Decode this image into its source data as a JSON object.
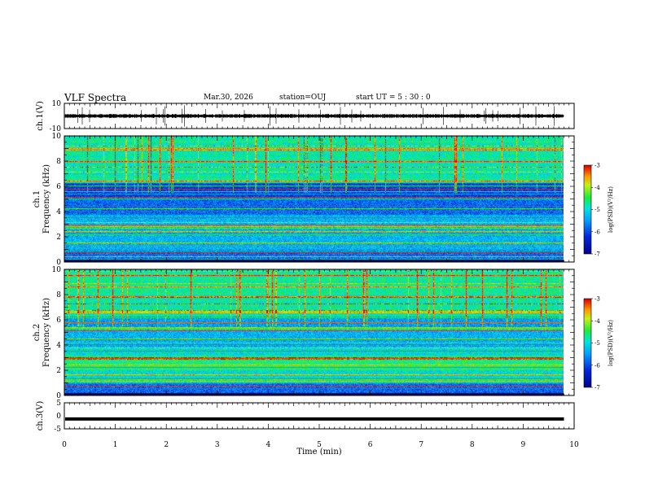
{
  "header": {
    "title": "VLF Spectra",
    "date": "Mar.30, 2026",
    "station": "station=OUJ",
    "start_ut": "start  UT =   5 : 30 : 0"
  },
  "chart_data": [
    {
      "id": "waveform-ch1",
      "type": "line",
      "ylabel": "ch.1(V)",
      "ylim": [
        -10,
        10
      ],
      "yticks": [
        "10",
        "-10"
      ],
      "baseline": 0
    },
    {
      "id": "spectrogram-ch1",
      "type": "heatmap",
      "ylabel_top": "ch.1",
      "ylabel_bottom": "Frequency  (kHz)",
      "ylim": [
        0,
        10
      ],
      "yticks": [
        "0",
        "2",
        "4",
        "6",
        "8",
        "10"
      ]
    },
    {
      "id": "spectrogram-ch2",
      "type": "heatmap",
      "ylabel_top": "ch.2",
      "ylabel_bottom": "Frequency  (kHz)",
      "ylim": [
        0,
        10
      ],
      "yticks": [
        "0",
        "2",
        "4",
        "6",
        "8",
        "10"
      ]
    },
    {
      "id": "waveform-ch3",
      "type": "line",
      "ylabel": "ch.3(V)",
      "ylim": [
        -5,
        5
      ],
      "yticks": [
        "5",
        "0",
        "-5"
      ],
      "baseline": -1.2
    }
  ],
  "x_axis": {
    "xlabel": "Time  (min)",
    "xlim": [
      0,
      10
    ],
    "xticks": [
      "0",
      "1",
      "2",
      "3",
      "4",
      "5",
      "6",
      "7",
      "8",
      "9",
      "10"
    ],
    "data_end": 9.8
  },
  "colorbar": {
    "label": "log(PSD)(V²/Hz)",
    "range": [
      -7,
      -3
    ],
    "ticks": [
      "-3",
      "-4",
      "-5",
      "-6",
      "-7"
    ]
  }
}
